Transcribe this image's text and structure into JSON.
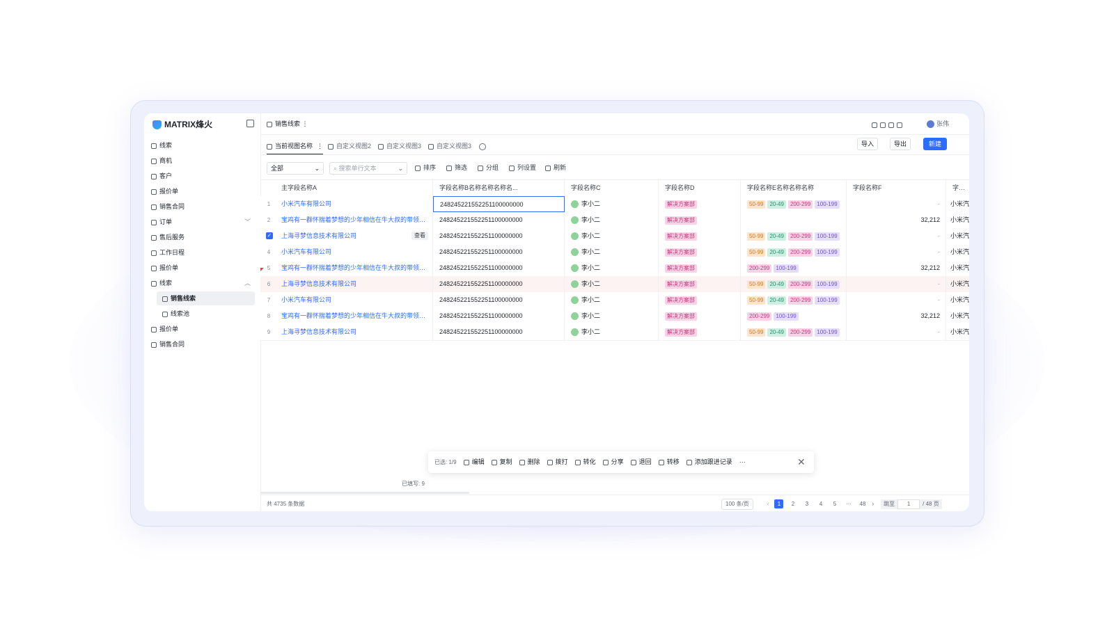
{
  "logo": "MATRIX烽火",
  "sidebar": {
    "items": [
      {
        "label": "线索"
      },
      {
        "label": "商机"
      },
      {
        "label": "客户"
      },
      {
        "label": "报价单"
      },
      {
        "label": "销售合同"
      },
      {
        "label": "订单",
        "expandable": true
      },
      {
        "label": "售后服务"
      },
      {
        "label": "工作日程"
      },
      {
        "label": "报价单"
      },
      {
        "label": "线索",
        "expanded": true
      },
      {
        "label": "销售线索",
        "child": true,
        "active": true
      },
      {
        "label": "线索池",
        "child": true
      },
      {
        "label": "报价单"
      },
      {
        "label": "销售合同"
      }
    ]
  },
  "header": {
    "breadcrumb": "销售线索",
    "user": "张伟"
  },
  "tabs": [
    "当前视图名称",
    "自定义视图2",
    "自定义视图3",
    "自定义视图3"
  ],
  "actions": {
    "import": "导入",
    "export": "导出",
    "create": "新建"
  },
  "toolbar": {
    "select": "全部",
    "search": "搜索单行文本",
    "buttons": [
      "排序",
      "筛选",
      "分组",
      "列设置",
      "刷新"
    ]
  },
  "table": {
    "columns": [
      "主字段名称A",
      "字段名称B名称名称名称名...",
      "字段名称C",
      "字段名称D",
      "字段名称E名称名称名称",
      "字段名称F",
      "字段名"
    ],
    "rows": [
      {
        "no": "1",
        "a": "小米汽车有限公司",
        "b": "248245221552251100000000",
        "c": "李小二",
        "d": "解决方案部",
        "e": [
          {
            "text": "50-99",
            "color": "orange"
          },
          {
            "text": "20-49",
            "color": "green"
          },
          {
            "text": "200-299",
            "color": "pink"
          },
          {
            "text": "100-199",
            "color": "purple"
          }
        ],
        "f": "-",
        "g": "小米汽",
        "focused": true
      },
      {
        "no": "2",
        "a": "宝鸡有一群怀揣着梦想的少年相信在牛大叔的带领下...",
        "b": "248245221552251100000000",
        "c": "李小二",
        "d": "解决方案部",
        "e": [],
        "f": "32,212",
        "g": "小米汽"
      },
      {
        "no": "3",
        "a": "上海寻梦信息技术有限公司",
        "b": "248245221552251100000000",
        "c": "李小二",
        "d": "解决方案部",
        "e": [
          {
            "text": "50-99",
            "color": "orange"
          },
          {
            "text": "20-49",
            "color": "green"
          },
          {
            "text": "200-299",
            "color": "pink"
          },
          {
            "text": "100-199",
            "color": "purple"
          }
        ],
        "f": "-",
        "g": "小米汽",
        "checked": true,
        "action": "查看"
      },
      {
        "no": "4",
        "a": "小米汽车有限公司",
        "b": "248245221552251100000000",
        "c": "李小二",
        "d": "解决方案部",
        "e": [
          {
            "text": "50-99",
            "color": "orange"
          },
          {
            "text": "20-49",
            "color": "green"
          },
          {
            "text": "200-299",
            "color": "pink"
          },
          {
            "text": "100-199",
            "color": "purple"
          }
        ],
        "f": "-",
        "g": "小米汽"
      },
      {
        "no": "5",
        "a": "宝鸡有一群怀揣着梦想的少年相信在牛大叔的带领下...",
        "b": "248245221552251100000000",
        "c": "李小二",
        "d": "解决方案部",
        "e": [
          {
            "text": "200-299",
            "color": "pink"
          },
          {
            "text": "100-199",
            "color": "purple"
          }
        ],
        "f": "32,212",
        "g": "小米汽"
      },
      {
        "no": "6",
        "a": "上海寻梦信息技术有限公司",
        "b": "248245221552251100000000",
        "c": "李小二",
        "d": "解决方案部",
        "e": [
          {
            "text": "50-99",
            "color": "orange"
          },
          {
            "text": "20-49",
            "color": "green"
          },
          {
            "text": "200-299",
            "color": "pink"
          },
          {
            "text": "100-199",
            "color": "purple"
          }
        ],
        "f": "-",
        "g": "小米汽",
        "highlighted": true
      },
      {
        "no": "7",
        "a": "小米汽车有限公司",
        "b": "248245221552251100000000",
        "c": "李小二",
        "d": "解决方案部",
        "e": [
          {
            "text": "50-99",
            "color": "orange"
          },
          {
            "text": "20-49",
            "color": "green"
          },
          {
            "text": "200-299",
            "color": "pink"
          },
          {
            "text": "100-199",
            "color": "purple"
          }
        ],
        "f": "-",
        "g": "小米汽"
      },
      {
        "no": "8",
        "a": "宝鸡有一群怀揣着梦想的少年相信在牛大叔的带领下...",
        "b": "248245221552251100000000",
        "c": "李小二",
        "d": "解决方案部",
        "e": [
          {
            "text": "200-299",
            "color": "pink"
          },
          {
            "text": "100-199",
            "color": "purple"
          }
        ],
        "f": "32,212",
        "g": "小米汽"
      },
      {
        "no": "9",
        "a": "上海寻梦信息技术有限公司",
        "b": "248245221552251100000000",
        "c": "李小二",
        "d": "解决方案部",
        "e": [
          {
            "text": "50-99",
            "color": "orange"
          },
          {
            "text": "20-49",
            "color": "green"
          },
          {
            "text": "200-299",
            "color": "pink"
          },
          {
            "text": "100-199",
            "color": "purple"
          }
        ],
        "f": "-",
        "g": "小米汽"
      }
    ]
  },
  "batch_bar": {
    "selected": "已选: 1/9",
    "buttons": [
      "编辑",
      "复制",
      "删除",
      "拨打",
      "转化",
      "分享",
      "退回",
      "转移",
      "添加跟进记录"
    ],
    "more": "···"
  },
  "summary": "已填写: 9",
  "footer": {
    "total": "共 4735 条数据",
    "page_size": "100 条/页",
    "pages": [
      "1",
      "2",
      "3",
      "4",
      "5",
      "···",
      "48"
    ],
    "current": "1",
    "jump": "跳至",
    "jump_value": "1",
    "page_total": "/ 48 页"
  }
}
